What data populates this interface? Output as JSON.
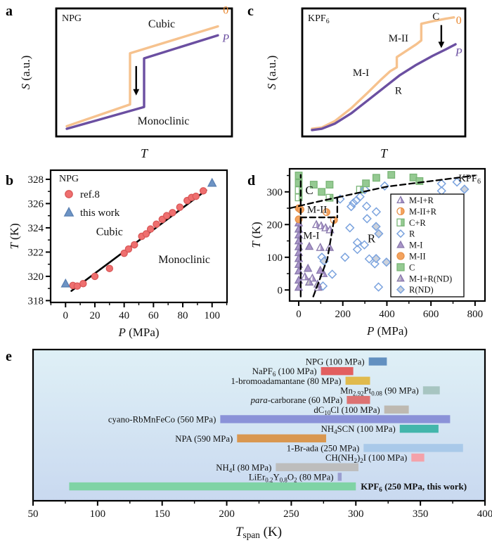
{
  "panel_labels": {
    "a": "a",
    "b": "b",
    "c": "c",
    "d": "d",
    "e": "e"
  },
  "chart_data": [
    {
      "id": "a",
      "type": "line",
      "material": "NPG",
      "xlabel": "*T*",
      "ylabel": "*S* (a.u.)",
      "phase_labels": [
        {
          "text": "Cubic",
          "x": 60,
          "y": 88,
          "size": 16
        },
        {
          "text": "Monoclinic",
          "x": 61,
          "y": 12,
          "size": 16
        }
      ],
      "curves": [
        {
          "name": "0 MPa",
          "color": "#f6c28e",
          "width": 3.4,
          "points": [
            [
              6,
              8
            ],
            [
              42,
              25
            ],
            [
              42,
              65
            ],
            [
              92,
              86
            ]
          ],
          "label": "0",
          "label_color": "#e8862d",
          "label_pos": [
            96.5,
            96
          ]
        },
        {
          "name": "P",
          "color": "#6b4fa1",
          "width": 3.4,
          "points": [
            [
              6,
              6
            ],
            [
              50,
              23
            ],
            [
              50,
              61
            ],
            [
              92,
              79
            ]
          ],
          "label": "*P*",
          "label_color": "#6b4fa1",
          "label_pos": [
            96.5,
            74
          ]
        }
      ],
      "arrow": {
        "x": 45.5,
        "y_from": 55,
        "y_to": 32
      }
    },
    {
      "id": "b",
      "type": "scatter",
      "material": "NPG",
      "xlabel": "*P* (MPa)",
      "ylabel": "*T* (K)",
      "xlim": [
        -10.2,
        110.2
      ],
      "ylim": [
        317.85,
        328.75
      ],
      "x_ticks": [
        0,
        20,
        40,
        60,
        80,
        100
      ],
      "x_minor_step": 10,
      "y_ticks": [
        318,
        320,
        322,
        324,
        326,
        328
      ],
      "y_minor_step": 1,
      "phase_labels": [
        {
          "text": "Cubic",
          "p": 30,
          "t": 323.4,
          "size": 16
        },
        {
          "text": "Monoclinic",
          "p": 81,
          "t": 321.1,
          "size": 16
        }
      ],
      "series": [
        {
          "name": "ref.8",
          "marker": "circle",
          "fill": "#ef6f6f",
          "stroke": "#d95858",
          "size": 4.6,
          "points": [
            [
              5,
              319.25
            ],
            [
              8,
              319.2
            ],
            [
              12,
              319.4
            ],
            [
              20,
              320.0
            ],
            [
              30,
              320.65
            ],
            [
              40,
              321.9
            ],
            [
              43,
              322.25
            ],
            [
              47,
              322.6
            ],
            [
              52,
              323.3
            ],
            [
              55,
              323.5
            ],
            [
              58,
              323.9
            ],
            [
              62,
              324.3
            ],
            [
              66,
              324.7
            ],
            [
              69,
              325.0
            ],
            [
              73,
              325.25
            ],
            [
              78,
              325.7
            ],
            [
              83,
              326.25
            ],
            [
              86,
              326.5
            ],
            [
              89,
              326.6
            ],
            [
              94,
              327.05
            ]
          ]
        },
        {
          "name": "this work",
          "marker": "triangle",
          "fill": "#6d94c5",
          "stroke": "#5a80b2",
          "size": 6,
          "points": [
            [
              0,
              319.4
            ],
            [
              100,
              327.7
            ]
          ]
        }
      ],
      "fit_line": {
        "color": "#000000",
        "width": 2.6,
        "points": [
          [
            4,
            318.8
          ],
          [
            96,
            327.1
          ]
        ]
      }
    },
    {
      "id": "c",
      "type": "line",
      "material": "KPF_{6}",
      "xlabel": "*T*",
      "ylabel": "*S* (a.u.)",
      "phase_labels": [
        {
          "text": "M-I",
          "x": 36,
          "y": 50,
          "size": 15
        },
        {
          "text": "M-II",
          "x": 59,
          "y": 77,
          "size": 15
        },
        {
          "text": "C",
          "x": 82,
          "y": 94,
          "size": 15
        },
        {
          "text": "R",
          "x": 59,
          "y": 36,
          "size": 15
        }
      ],
      "curves": [
        {
          "name": "0 MPa",
          "color": "#f6c28e",
          "width": 3.4,
          "points": [
            [
              6,
              6
            ],
            [
              12,
              7
            ],
            [
              20,
              12
            ],
            [
              30,
              22
            ],
            [
              40,
              34
            ],
            [
              48,
              44
            ],
            [
              54,
              51
            ],
            [
              58,
              54
            ],
            [
              58,
              62
            ],
            [
              64,
              67
            ],
            [
              70,
              72
            ],
            [
              73,
              75
            ],
            [
              73,
              88
            ],
            [
              80,
              90
            ],
            [
              88,
              92
            ],
            [
              93,
              93
            ]
          ],
          "label": "0",
          "label_color": "#e8862d",
          "label_pos": [
            96,
            88
          ]
        },
        {
          "name": "P",
          "color": "#6b4fa1",
          "width": 3.4,
          "points": [
            [
              6,
              5
            ],
            [
              12,
              6
            ],
            [
              20,
              10
            ],
            [
              30,
              18
            ],
            [
              40,
              28
            ],
            [
              50,
              38
            ],
            [
              60,
              48
            ],
            [
              70,
              56
            ],
            [
              80,
              63
            ],
            [
              88,
              68
            ],
            [
              94,
              72
            ]
          ],
          "label": "*P*",
          "label_color": "#6b4fa1",
          "label_pos": [
            96,
            63
          ]
        }
      ],
      "arrow": {
        "x": 85.3,
        "y_from": 87,
        "y_to": 69
      }
    },
    {
      "id": "d",
      "type": "scatter",
      "material": "KPF_{6}",
      "xlabel": "*P* (MPa)",
      "ylabel": "*T* (K)",
      "xlim": [
        -41.5,
        845
      ],
      "ylim": [
        -33.8,
        370.5
      ],
      "x_ticks": [
        0,
        200,
        400,
        600,
        800
      ],
      "x_minor_step": 100,
      "y_ticks": [
        0,
        100,
        200,
        300
      ],
      "y_minor_step": 50,
      "phase_labels": [
        {
          "text": "C",
          "p": 48,
          "t": 293,
          "size": 17
        },
        {
          "text": "M-II",
          "p": 83,
          "t": 236,
          "size": 15
        },
        {
          "text": "M-I",
          "p": 57,
          "t": 157,
          "size": 15
        },
        {
          "text": "R",
          "p": 330,
          "t": 146,
          "size": 17
        }
      ],
      "series": [
        {
          "name": "M-I+R",
          "marker": "triangle-half",
          "fill": "#a995c9",
          "stroke": "#8878ab",
          "size": 5.4,
          "points": [
            [
              80,
              200
            ],
            [
              102,
              196
            ],
            [
              122,
              190
            ],
            [
              142,
              184
            ],
            [
              98,
              130
            ],
            [
              140,
              130
            ],
            [
              28,
              40
            ],
            [
              62,
              36
            ],
            [
              112,
              50
            ],
            [
              88,
              8
            ]
          ]
        },
        {
          "name": "M-II+R",
          "marker": "circle-half",
          "fill": "#f4a35e",
          "stroke": "#e6914a",
          "size": 4.8,
          "points": [
            [
              126,
              238
            ],
            [
              160,
              214
            ]
          ]
        },
        {
          "name": "C+R",
          "marker": "square-half",
          "fill": "#95ca92",
          "stroke": "#7ab577",
          "size": 4.8,
          "points": [
            [
              0,
              305
            ],
            [
              0,
              283
            ],
            [
              140,
              282
            ],
            [
              278,
              307
            ]
          ]
        },
        {
          "name": "R",
          "marker": "diamond",
          "fill": "none",
          "stroke": "#7ba3de",
          "size": 5.6,
          "points": [
            [
              110,
              12
            ],
            [
              152,
              48
            ],
            [
              105,
              100
            ],
            [
              210,
              100
            ],
            [
              232,
              190
            ],
            [
              238,
              255
            ],
            [
              248,
              266
            ],
            [
              188,
              278
            ],
            [
              262,
              274
            ],
            [
              278,
              285
            ],
            [
              300,
              307
            ],
            [
              308,
              256
            ],
            [
              310,
              218
            ],
            [
              352,
              239
            ],
            [
              266,
              145
            ],
            [
              298,
              138
            ],
            [
              266,
              124
            ],
            [
              320,
              95
            ],
            [
              345,
              80
            ],
            [
              362,
              9
            ],
            [
              390,
              318
            ],
            [
              648,
              325
            ],
            [
              648,
              303
            ],
            [
              718,
              330
            ]
          ]
        },
        {
          "name": "M-I",
          "marker": "triangle",
          "fill": "#a995c9",
          "stroke": "#8878ab",
          "size": 5.4,
          "points": [
            [
              0,
              205
            ],
            [
              0,
              186
            ],
            [
              0,
              168
            ],
            [
              0,
              150
            ],
            [
              0,
              132
            ],
            [
              0,
              114
            ],
            [
              0,
              96
            ],
            [
              0,
              78
            ],
            [
              0,
              58
            ],
            [
              0,
              30
            ],
            [
              0,
              8
            ],
            [
              42,
              66
            ],
            [
              98,
              60
            ],
            [
              48,
              133
            ]
          ]
        },
        {
          "name": "M-II",
          "marker": "circle",
          "fill": "#f4a35e",
          "stroke": "#e6914a",
          "size": 4.8,
          "points": [
            [
              0,
              250
            ],
            [
              8,
              246
            ],
            [
              0,
              216
            ]
          ]
        },
        {
          "name": "C",
          "marker": "square",
          "fill": "#95ca92",
          "stroke": "#7ab577",
          "size": 4.8,
          "points": [
            [
              0,
              350
            ],
            [
              0,
              327
            ],
            [
              68,
              322
            ],
            [
              104,
              300
            ],
            [
              140,
              322
            ],
            [
              305,
              326
            ],
            [
              352,
              343
            ],
            [
              420,
              352
            ],
            [
              520,
              344
            ],
            [
              548,
              333
            ]
          ]
        },
        {
          "name": "M-I+R(ND)",
          "marker": "triangle-half",
          "fill": "#a995c9",
          "fill2": "#c6c6c6",
          "stroke": "#8878ab",
          "size": 5.4,
          "points": [
            [
              48,
              24
            ],
            [
              86,
              18
            ]
          ]
        },
        {
          "name": "R(ND)",
          "marker": "diamond",
          "fill": "#ccd2dc",
          "stroke": "#7ba3de",
          "size": 5.6,
          "points": [
            [
              351,
              194
            ],
            [
              363,
              172
            ],
            [
              351,
              96
            ],
            [
              115,
              88
            ],
            [
              398,
              85
            ],
            [
              752,
              308
            ]
          ]
        }
      ],
      "boundaries": {
        "color": "#000000",
        "width": 2.3,
        "dash": "8 5",
        "lines": [
          [
            [
              9,
              -20
            ],
            [
              9,
              352
            ]
          ],
          [
            [
              -40,
              250
            ],
            [
              60,
              266
            ],
            [
              175,
              283
            ]
          ],
          [
            [
              175,
              283
            ],
            [
              400,
              316
            ],
            [
              800,
              350
            ]
          ],
          [
            [
              175,
              283
            ],
            [
              175,
              222
            ]
          ],
          [
            [
              9,
              222
            ],
            [
              175,
              222
            ]
          ],
          [
            [
              66,
              -20
            ],
            [
              130,
              95
            ],
            [
              162,
              222
            ]
          ]
        ]
      }
    },
    {
      "id": "e",
      "type": "bar-h",
      "xlabel": "*T*_{span} (K)",
      "xlim": [
        50,
        400
      ],
      "x_ticks": [
        50,
        100,
        150,
        200,
        250,
        300,
        350,
        400
      ],
      "x_minor_step": 25,
      "background_top": "#dff0f6",
      "background_bottom": "#c9d9f0",
      "bars": [
        {
          "label": "NPG (100 MPa)",
          "start": 310,
          "end": 324,
          "color": "#6290c0",
          "label_side": "left"
        },
        {
          "label": "NaPF_{6} (100 MPa)",
          "start": 273,
          "end": 298,
          "color": "#e25f5f",
          "label_side": "left"
        },
        {
          "label": "1-bromoadamantane (80 MPa)",
          "start": 292,
          "end": 311,
          "color": "#e0ba4d",
          "label_side": "left"
        },
        {
          "label": "Mn_{2.92}Pt_{0.08} (90 MPa)",
          "start": 352,
          "end": 365,
          "color": "#a7c5c1",
          "label_side": "left"
        },
        {
          "label": "*para*-carborane (60 MPa)",
          "start": 293,
          "end": 311,
          "color": "#dd7272",
          "label_side": "left"
        },
        {
          "label": "dC_{10}Cl (100 MPa)",
          "start": 322,
          "end": 341,
          "color": "#beb9b1",
          "label_side": "left"
        },
        {
          "label": "cyano-RbMnFeCo (560 MPa)",
          "start": 195,
          "end": 373,
          "color": "#8b92d8",
          "label_side": "left"
        },
        {
          "label": "NH_{4}SCN (100 MPa)",
          "start": 334,
          "end": 364,
          "color": "#43b6ab",
          "label_side": "left"
        },
        {
          "label": "NPA (590 MPa)",
          "start": 208,
          "end": 277,
          "color": "#d99750",
          "label_side": "left"
        },
        {
          "label": "1-Br-ada (250 MPa)",
          "start": 306,
          "end": 383,
          "color": "#a9c9e9",
          "label_side": "left"
        },
        {
          "label": "CH(NH_{2})_{2}I (100 MPa)",
          "start": 343,
          "end": 353,
          "color": "#f4a2aa",
          "label_side": "left"
        },
        {
          "label": "NH_{4}I (80 MPa)",
          "start": 238,
          "end": 302,
          "color": "#bdbdbd",
          "label_side": "left"
        },
        {
          "label": "LiEr_{0.2}Y_{0.8}O_{2} (80 MPa)",
          "start": 286,
          "end": 289,
          "color": "#9a9ed0",
          "label_side": "left"
        },
        {
          "label": "KPF_{6} (250 MPa, this work)",
          "start": 78,
          "end": 300,
          "color": "#7fd3a5",
          "label_side": "right",
          "bold": true
        }
      ]
    }
  ]
}
